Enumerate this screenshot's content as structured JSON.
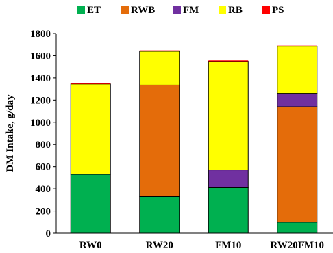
{
  "chart_data": {
    "type": "bar",
    "stacked": true,
    "categories": [
      "RW0",
      "RW20",
      "FM10",
      "RW20FM10"
    ],
    "series": [
      {
        "name": "ET",
        "color": "#00b050",
        "values": [
          530,
          330,
          410,
          100
        ]
      },
      {
        "name": "RWB",
        "color": "#e46c0a",
        "values": [
          0,
          1005,
          0,
          1040
        ]
      },
      {
        "name": "FM",
        "color": "#7030a0",
        "values": [
          0,
          0,
          160,
          120
        ]
      },
      {
        "name": "RB",
        "color": "#ffff00",
        "values": [
          815,
          305,
          980,
          425
        ]
      },
      {
        "name": "PS",
        "color": "#ff0000",
        "values": [
          8,
          8,
          8,
          6
        ]
      }
    ],
    "ylabel": "DM Intake, g/day",
    "xlabel": "",
    "ylim": [
      0,
      1800
    ],
    "yticks": [
      0,
      200,
      400,
      600,
      800,
      1000,
      1200,
      1400,
      1600,
      1800
    ],
    "grid": false,
    "legend_position": "top-center"
  }
}
